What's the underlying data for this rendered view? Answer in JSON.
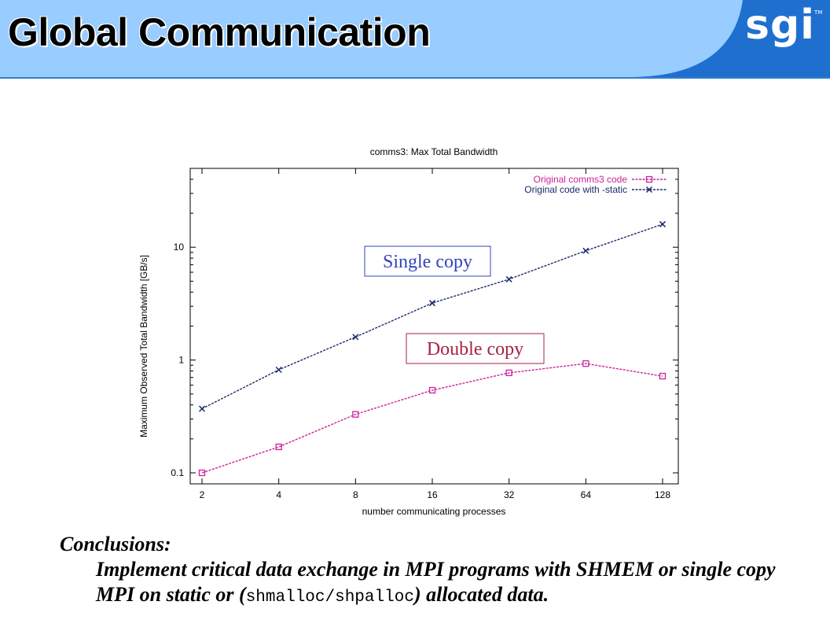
{
  "slide": {
    "title": "Global Communication",
    "logo": "sgi",
    "logo_tm": "TM"
  },
  "colors": {
    "header_bg": "#99ccff",
    "header_accent": "#1f6fcf",
    "series_original": "#cc2299",
    "series_static": "#1a2a6c",
    "single_copy_text": "#3344bb",
    "double_copy_text": "#aa2244"
  },
  "chart_data": {
    "type": "line",
    "title": "comms3: Max Total Bandwidth",
    "xlabel": "number communicating processes",
    "ylabel": "Maximum Observed Total Bandwidth [GB/s]",
    "x_scale": "log2",
    "y_scale": "log10",
    "xlim": [
      2,
      128
    ],
    "ylim": [
      0.1,
      50
    ],
    "x_ticks": [
      2,
      4,
      8,
      16,
      32,
      64,
      128
    ],
    "x_tick_labels": [
      "2",
      "4",
      "8",
      "16",
      "32",
      "64",
      "128"
    ],
    "y_ticks": [
      0.1,
      1,
      10
    ],
    "y_tick_labels": [
      "0.1",
      "1",
      "10"
    ],
    "grid": false,
    "legend_position": "top-right",
    "series": [
      {
        "name": "Original comms3 code",
        "marker": "square",
        "color": "#cc2299",
        "x": [
          2,
          4,
          8,
          16,
          32,
          64,
          128
        ],
        "values": [
          0.1,
          0.17,
          0.33,
          0.54,
          0.77,
          0.93,
          0.72
        ]
      },
      {
        "name": "Original code with -static",
        "marker": "x",
        "color": "#1a2a6c",
        "x": [
          2,
          4,
          8,
          16,
          32,
          64,
          128
        ],
        "values": [
          0.37,
          0.82,
          1.6,
          3.2,
          5.2,
          9.3,
          16
        ]
      }
    ],
    "annotations": [
      {
        "text": "Single copy",
        "color": "#3344bb"
      },
      {
        "text": "Double copy",
        "color": "#aa2244"
      }
    ]
  },
  "conclusions": {
    "heading": "Conclusions:",
    "body_part1": "Implement critical data exchange in MPI programs with SHMEM or single copy MPI on static or (",
    "body_code": "shmalloc/shpalloc",
    "body_part2": ") allocated data."
  }
}
